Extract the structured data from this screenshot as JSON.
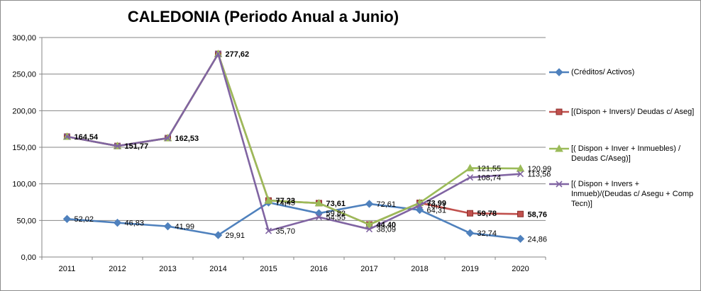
{
  "chart_data": {
    "type": "line",
    "title": "CALEDONIA (Periodo Anual a Junio)",
    "xlabel": "",
    "ylabel": "",
    "categories": [
      "2011",
      "2012",
      "2013",
      "2014",
      "2015",
      "2016",
      "2017",
      "2018",
      "2019",
      "2020"
    ],
    "ylim": [
      0,
      300
    ],
    "yticks": [
      "0,00",
      "50,00",
      "100,00",
      "150,00",
      "200,00",
      "250,00",
      "300,00"
    ],
    "grid": true,
    "legend_position": "right",
    "series": [
      {
        "name": "(Créditos/ Activos)",
        "color": "#4f81bd",
        "marker": "diamond",
        "values": [
          52.02,
          46.83,
          41.99,
          29.91,
          74.45,
          59.82,
          72.61,
          64.31,
          32.74,
          24.86
        ],
        "labels": [
          "52,02",
          "46,83",
          "41,99",
          "29,91",
          "74,45",
          "59,82",
          "72,61",
          "64,31",
          "32,74",
          "24,86"
        ]
      },
      {
        "name": "[(Dispon + Invers)/ Deudas c/ Aseg]",
        "color": "#c0504d",
        "marker": "square",
        "values": [
          164.54,
          151.77,
          162.53,
          277.62,
          77.23,
          73.61,
          44.4,
          73.99,
          59.78,
          58.76
        ],
        "labels": [
          "164,54",
          "151,77",
          "162,53",
          "277,62",
          "77,23",
          "73,61",
          "44,40",
          "73,99",
          "59,78",
          "58,76"
        ]
      },
      {
        "name": "[( Dispon + Inver + Inmuebles) / Deudas C/Aseg)]",
        "color": "#9bbb59",
        "marker": "triangle",
        "values": [
          164.54,
          151.77,
          162.53,
          277.62,
          77.23,
          73.61,
          44.4,
          73.99,
          121.55,
          120.99
        ],
        "labels": [
          "",
          "",
          "",
          "",
          "",
          "",
          "",
          "",
          "121,55",
          "120,99"
        ]
      },
      {
        "name": "[( Dispon + Invers + Inmueb)/(Deudas c/ Asegu + Comp Tecn)]",
        "color": "#8064a2",
        "marker": "x",
        "values": [
          164.54,
          151.77,
          162.53,
          277.62,
          35.7,
          54.55,
          38.09,
          70.71,
          108.74,
          113.56
        ],
        "labels": [
          "",
          "",
          "",
          "",
          "35,70",
          "54,55",
          "38,09",
          "70,71",
          "108,74",
          "113,56"
        ]
      }
    ]
  }
}
